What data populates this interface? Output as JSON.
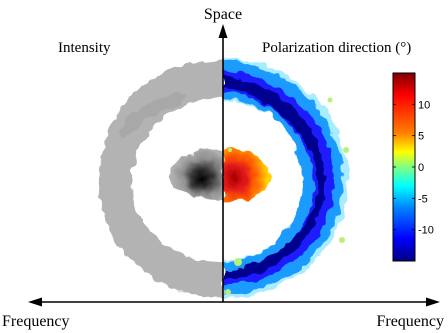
{
  "chart_data": {
    "type": "heatmap",
    "axes": {
      "vertical_label": "Space",
      "horizontal_label_left": "Frequency",
      "horizontal_label_right": "Frequency"
    },
    "panels": [
      {
        "name": "intensity",
        "title": "Intensity",
        "colormap": "gray"
      },
      {
        "name": "polarization",
        "title": "Polarization direction (°)",
        "colormap": "jet"
      }
    ],
    "colorbar": {
      "range": [
        -15,
        15
      ],
      "ticks": [
        10,
        5,
        0,
        -5,
        -10
      ],
      "tick_labels": [
        "10",
        "5",
        "0",
        "-5",
        "-10"
      ]
    },
    "features": {
      "outer_ring_polarization_deg": -12,
      "center_spot_polarization_deg": 13
    },
    "colors": {
      "axis": "#000000",
      "ring_gray": "#b3b3b3",
      "center_gray": "#000000"
    }
  }
}
